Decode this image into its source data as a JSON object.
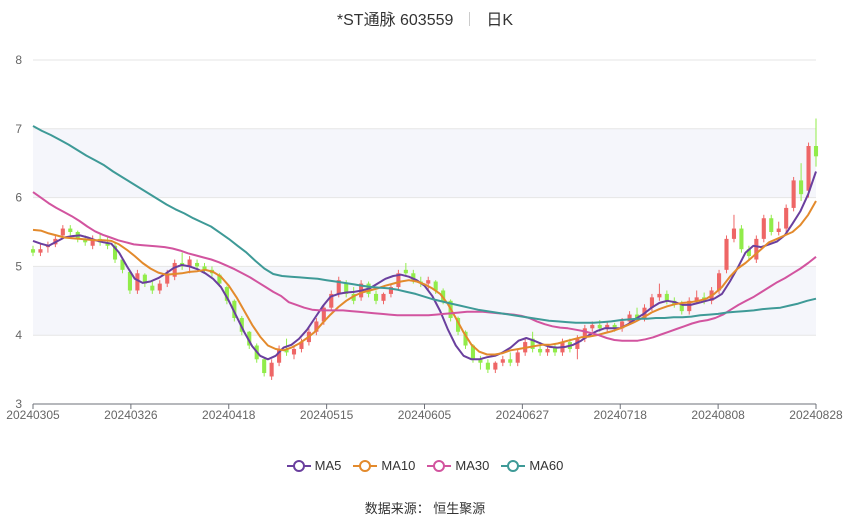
{
  "header": {
    "stock": "*ST通脉 603559",
    "period": "日K"
  },
  "source": "数据来源： 恒生聚源",
  "colors": {
    "up": "#ee6666",
    "down": "#91ec4a",
    "band": "#f5f6fb",
    "grid": "#e6e6e6"
  },
  "chart_data": {
    "type": "candlestick",
    "title": "*ST通脉 603559",
    "ylim": [
      3,
      8
    ],
    "yticks": [
      3,
      4,
      5,
      6,
      7,
      8
    ],
    "xticks": [
      "20240305",
      "20240326",
      "20240418",
      "20240515",
      "20240605",
      "20240627",
      "20240718",
      "20240808",
      "20240828"
    ],
    "legend": {
      "position": "bottom"
    },
    "candles_ohlc": [
      [
        5.25,
        5.3,
        5.15,
        5.2
      ],
      [
        5.2,
        5.32,
        5.15,
        5.25
      ],
      [
        5.28,
        5.36,
        5.2,
        5.3
      ],
      [
        5.32,
        5.45,
        5.28,
        5.4
      ],
      [
        5.45,
        5.6,
        5.4,
        5.55
      ],
      [
        5.55,
        5.6,
        5.45,
        5.5
      ],
      [
        5.5,
        5.52,
        5.35,
        5.4
      ],
      [
        5.4,
        5.45,
        5.3,
        5.35
      ],
      [
        5.3,
        5.45,
        5.25,
        5.4
      ],
      [
        5.4,
        5.48,
        5.3,
        5.35
      ],
      [
        5.35,
        5.42,
        5.25,
        5.3
      ],
      [
        5.3,
        5.35,
        5.05,
        5.1
      ],
      [
        5.1,
        5.12,
        4.9,
        4.95
      ],
      [
        4.92,
        4.95,
        4.6,
        4.65
      ],
      [
        4.65,
        4.95,
        4.6,
        4.9
      ],
      [
        4.88,
        4.9,
        4.7,
        4.75
      ],
      [
        4.72,
        4.8,
        4.6,
        4.65
      ],
      [
        4.65,
        4.8,
        4.6,
        4.75
      ],
      [
        4.75,
        4.95,
        4.7,
        4.9
      ],
      [
        4.85,
        5.1,
        4.8,
        5.05
      ],
      [
        5.05,
        5.2,
        4.95,
        5.0
      ],
      [
        5.0,
        5.15,
        4.9,
        5.1
      ],
      [
        5.05,
        5.1,
        4.95,
        5.0
      ],
      [
        5.0,
        5.05,
        4.9,
        4.95
      ],
      [
        4.95,
        5.0,
        4.85,
        4.9
      ],
      [
        4.88,
        4.9,
        4.7,
        4.75
      ],
      [
        4.7,
        4.72,
        4.45,
        4.5
      ],
      [
        4.5,
        4.52,
        4.2,
        4.25
      ],
      [
        4.25,
        4.28,
        4.0,
        4.05
      ],
      [
        4.05,
        4.06,
        3.8,
        3.85
      ],
      [
        3.85,
        3.88,
        3.6,
        3.65
      ],
      [
        3.65,
        3.68,
        3.4,
        3.45
      ],
      [
        3.4,
        3.65,
        3.35,
        3.6
      ],
      [
        3.6,
        3.85,
        3.55,
        3.8
      ],
      [
        3.8,
        3.95,
        3.7,
        3.75
      ],
      [
        3.72,
        3.85,
        3.65,
        3.8
      ],
      [
        3.8,
        3.95,
        3.75,
        3.9
      ],
      [
        3.9,
        4.1,
        3.85,
        4.05
      ],
      [
        4.05,
        4.25,
        4.0,
        4.2
      ],
      [
        4.2,
        4.45,
        4.15,
        4.4
      ],
      [
        4.4,
        4.65,
        4.35,
        4.6
      ],
      [
        4.6,
        4.85,
        4.55,
        4.8
      ],
      [
        4.75,
        4.8,
        4.55,
        4.6
      ],
      [
        4.6,
        4.7,
        4.45,
        4.5
      ],
      [
        4.55,
        4.8,
        4.5,
        4.75
      ],
      [
        4.75,
        4.78,
        4.55,
        4.6
      ],
      [
        4.6,
        4.65,
        4.45,
        4.5
      ],
      [
        4.5,
        4.62,
        4.45,
        4.6
      ],
      [
        4.6,
        4.75,
        4.55,
        4.7
      ],
      [
        4.7,
        4.95,
        4.65,
        4.9
      ],
      [
        4.95,
        5.05,
        4.85,
        4.9
      ],
      [
        4.9,
        4.95,
        4.75,
        4.8
      ],
      [
        4.78,
        4.85,
        4.7,
        4.75
      ],
      [
        4.75,
        4.85,
        4.65,
        4.8
      ],
      [
        4.78,
        4.8,
        4.6,
        4.65
      ],
      [
        4.65,
        4.68,
        4.45,
        4.5
      ],
      [
        4.5,
        4.52,
        4.2,
        4.25
      ],
      [
        4.25,
        4.27,
        4.0,
        4.05
      ],
      [
        4.05,
        4.07,
        3.8,
        3.85
      ],
      [
        3.85,
        3.87,
        3.6,
        3.65
      ],
      [
        3.65,
        3.7,
        3.5,
        3.6
      ],
      [
        3.6,
        3.65,
        3.45,
        3.5
      ],
      [
        3.5,
        3.62,
        3.45,
        3.6
      ],
      [
        3.6,
        3.7,
        3.55,
        3.65
      ],
      [
        3.65,
        3.75,
        3.55,
        3.6
      ],
      [
        3.6,
        3.8,
        3.55,
        3.75
      ],
      [
        3.75,
        3.95,
        3.7,
        3.9
      ],
      [
        3.95,
        4.05,
        3.75,
        3.8
      ],
      [
        3.8,
        3.9,
        3.7,
        3.75
      ],
      [
        3.75,
        3.85,
        3.7,
        3.8
      ],
      [
        3.82,
        3.88,
        3.7,
        3.75
      ],
      [
        3.75,
        3.95,
        3.7,
        3.9
      ],
      [
        3.9,
        3.95,
        3.75,
        3.8
      ],
      [
        3.8,
        4.0,
        3.65,
        3.95
      ],
      [
        3.95,
        4.15,
        3.9,
        4.1
      ],
      [
        4.1,
        4.2,
        4.05,
        4.15
      ],
      [
        4.15,
        4.22,
        4.05,
        4.1
      ],
      [
        4.1,
        4.2,
        4.05,
        4.15
      ],
      [
        4.15,
        4.18,
        4.05,
        4.1
      ],
      [
        4.1,
        4.25,
        4.05,
        4.2
      ],
      [
        4.2,
        4.35,
        4.15,
        4.3
      ],
      [
        4.3,
        4.4,
        4.2,
        4.25
      ],
      [
        4.25,
        4.45,
        4.2,
        4.4
      ],
      [
        4.4,
        4.6,
        4.35,
        4.55
      ],
      [
        4.55,
        4.75,
        4.5,
        4.6
      ],
      [
        4.6,
        4.65,
        4.45,
        4.5
      ],
      [
        4.5,
        4.55,
        4.4,
        4.45
      ],
      [
        4.45,
        4.5,
        4.3,
        4.35
      ],
      [
        4.35,
        4.55,
        4.3,
        4.5
      ],
      [
        4.5,
        4.65,
        4.45,
        4.55
      ],
      [
        4.55,
        4.62,
        4.45,
        4.5
      ],
      [
        4.5,
        4.7,
        4.45,
        4.65
      ],
      [
        4.65,
        4.95,
        4.6,
        4.9
      ],
      [
        4.95,
        5.45,
        4.9,
        5.4
      ],
      [
        5.4,
        5.75,
        5.35,
        5.55
      ],
      [
        5.55,
        5.6,
        5.2,
        5.25
      ],
      [
        5.25,
        5.3,
        5.1,
        5.15
      ],
      [
        5.1,
        5.45,
        5.05,
        5.4
      ],
      [
        5.4,
        5.75,
        5.35,
        5.7
      ],
      [
        5.7,
        5.75,
        5.45,
        5.5
      ],
      [
        5.5,
        5.65,
        5.45,
        5.55
      ],
      [
        5.55,
        5.9,
        5.5,
        5.85
      ],
      [
        5.85,
        6.3,
        5.8,
        6.25
      ],
      [
        6.25,
        6.5,
        5.95,
        6.05
      ],
      [
        6.1,
        6.8,
        6.0,
        6.75
      ],
      [
        6.75,
        7.15,
        6.45,
        6.6
      ]
    ],
    "series": [
      {
        "name": "MA5",
        "color": "#6a3f9e",
        "values": [
          5.37,
          5.33,
          5.3,
          5.36,
          5.42,
          5.44,
          5.45,
          5.42,
          5.38,
          5.35,
          5.33,
          5.2,
          5.0,
          4.82,
          4.76,
          4.78,
          4.83,
          4.9,
          4.98,
          5.02,
          5.0,
          4.96,
          4.9,
          4.82,
          4.7,
          4.5,
          4.27,
          4.04,
          3.84,
          3.7,
          3.65,
          3.7,
          3.82,
          3.86,
          3.95,
          4.08,
          4.25,
          4.42,
          4.56,
          4.6,
          4.62,
          4.63,
          4.65,
          4.68,
          4.75,
          4.82,
          4.86,
          4.88,
          4.85,
          4.8,
          4.72,
          4.57,
          4.35,
          4.08,
          3.85,
          3.7,
          3.65,
          3.65,
          3.68,
          3.7,
          3.75,
          3.82,
          3.92,
          3.96,
          3.92,
          3.87,
          3.83,
          3.82,
          3.83,
          3.86,
          3.92,
          4.0,
          4.06,
          4.1,
          4.1,
          4.1,
          4.16,
          4.24,
          4.31,
          4.4,
          4.47,
          4.5,
          4.48,
          4.44,
          4.44,
          4.47,
          4.5,
          4.53,
          4.6,
          4.78,
          4.98,
          5.2,
          5.3,
          5.28,
          5.32,
          5.36,
          5.45,
          5.62,
          5.8,
          6.05,
          6.38
        ]
      },
      {
        "name": "MA10",
        "color": "#e38a2c",
        "values": [
          5.53,
          5.52,
          5.48,
          5.45,
          5.42,
          5.41,
          5.4,
          5.39,
          5.38,
          5.38,
          5.37,
          5.32,
          5.24,
          5.15,
          5.05,
          4.97,
          4.91,
          4.88,
          4.89,
          4.9,
          4.92,
          4.93,
          4.95,
          4.92,
          4.85,
          4.72,
          4.55,
          4.35,
          4.15,
          3.98,
          3.85,
          3.8,
          3.78,
          3.82,
          3.88,
          3.96,
          4.05,
          4.18,
          4.3,
          4.41,
          4.5,
          4.57,
          4.62,
          4.65,
          4.68,
          4.72,
          4.75,
          4.78,
          4.8,
          4.78,
          4.74,
          4.68,
          4.6,
          4.45,
          4.25,
          4.04,
          3.86,
          3.76,
          3.72,
          3.72,
          3.74,
          3.78,
          3.8,
          3.82,
          3.84,
          3.86,
          3.86,
          3.88,
          3.91,
          3.94,
          3.97,
          3.98,
          4.0,
          4.03,
          4.06,
          4.1,
          4.15,
          4.2,
          4.26,
          4.33,
          4.38,
          4.42,
          4.45,
          4.47,
          4.48,
          4.5,
          4.53,
          4.6,
          4.7,
          4.85,
          4.97,
          5.05,
          5.15,
          5.25,
          5.35,
          5.4,
          5.45,
          5.5,
          5.6,
          5.75,
          5.95
        ]
      },
      {
        "name": "MA30",
        "color": "#d2549f",
        "values": [
          6.08,
          6.0,
          5.92,
          5.85,
          5.79,
          5.73,
          5.66,
          5.58,
          5.51,
          5.46,
          5.42,
          5.38,
          5.35,
          5.32,
          5.31,
          5.3,
          5.29,
          5.28,
          5.26,
          5.23,
          5.19,
          5.16,
          5.13,
          5.1,
          5.06,
          5.01,
          4.96,
          4.9,
          4.84,
          4.77,
          4.7,
          4.63,
          4.57,
          4.48,
          4.44,
          4.4,
          4.37,
          4.36,
          4.36,
          4.36,
          4.36,
          4.35,
          4.34,
          4.33,
          4.32,
          4.31,
          4.3,
          4.29,
          4.29,
          4.29,
          4.29,
          4.29,
          4.3,
          4.31,
          4.32,
          4.33,
          4.34,
          4.34,
          4.34,
          4.33,
          4.32,
          4.31,
          4.3,
          4.28,
          4.25,
          4.2,
          4.16,
          4.13,
          4.11,
          4.1,
          4.08,
          4.06,
          4.03,
          4.0,
          3.96,
          3.93,
          3.92,
          3.92,
          3.92,
          3.94,
          3.97,
          4.01,
          4.05,
          4.09,
          4.13,
          4.17,
          4.2,
          4.22,
          4.25,
          4.3,
          4.37,
          4.44,
          4.5,
          4.56,
          4.63,
          4.7,
          4.77,
          4.83,
          4.9,
          4.97,
          5.05,
          5.14
        ]
      },
      {
        "name": "MA60",
        "color": "#3e9a97",
        "values": [
          7.04,
          6.97,
          6.91,
          6.84,
          6.77,
          6.69,
          6.61,
          6.54,
          6.47,
          6.38,
          6.3,
          6.22,
          6.14,
          6.06,
          5.98,
          5.9,
          5.83,
          5.77,
          5.7,
          5.64,
          5.58,
          5.49,
          5.4,
          5.3,
          5.2,
          5.08,
          4.97,
          4.89,
          4.86,
          4.85,
          4.84,
          4.83,
          4.82,
          4.8,
          4.78,
          4.76,
          4.74,
          4.72,
          4.7,
          4.69,
          4.68,
          4.66,
          4.63,
          4.6,
          4.56,
          4.52,
          4.49,
          4.46,
          4.43,
          4.4,
          4.37,
          4.35,
          4.33,
          4.31,
          4.29,
          4.27,
          4.25,
          4.23,
          4.21,
          4.2,
          4.19,
          4.18,
          4.18,
          4.18,
          4.19,
          4.2,
          4.22,
          4.23,
          4.24,
          4.24,
          4.25,
          4.25,
          4.26,
          4.26,
          4.27,
          4.29,
          4.3,
          4.31,
          4.33,
          4.34,
          4.35,
          4.36,
          4.38,
          4.39,
          4.4,
          4.43,
          4.46,
          4.5,
          4.53
        ]
      }
    ]
  }
}
